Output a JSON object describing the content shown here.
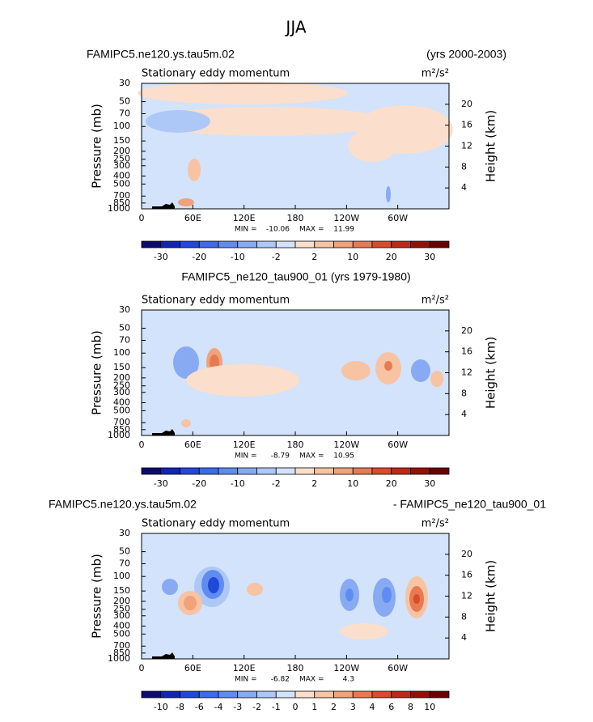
{
  "title": "JJA",
  "chart_data": [
    {
      "type": "contour",
      "title_left": "FAMIPC5.ne120.ys.tau5m.02",
      "title_right": "(yrs 2000-2003)",
      "subtitle": "Stationary eddy momentum",
      "units": "m²/s²",
      "ylabel": "Pressure (mb)",
      "y2label": "Height (km)",
      "log_y": true,
      "xlim": [
        0,
        360
      ],
      "xticks": [
        0,
        {
          "value": 60,
          "label": "60E"
        },
        {
          "value": 120,
          "label": "120E"
        },
        180,
        {
          "value": 240,
          "label": "120W"
        },
        {
          "value": 300,
          "label": "60W"
        }
      ],
      "ylim": [
        1000,
        30
      ],
      "yticks": [
        30,
        50,
        70,
        100,
        150,
        200,
        250,
        300,
        400,
        500,
        700,
        850,
        1000
      ],
      "y2lim": [
        0,
        24
      ],
      "y2ticks": [
        4,
        8,
        12,
        16,
        20
      ],
      "min_label": "MIN =",
      "min": -10.06,
      "max_label": "MAX =",
      "max": 11.99,
      "levels": [
        -30,
        null,
        -20,
        null,
        -10,
        null,
        -2,
        null,
        2,
        null,
        10,
        null,
        20,
        null,
        30
      ],
      "colors": [
        "#0b0b70",
        "#1025b0",
        "#2248d8",
        "#3d6ce8",
        "#5f8cf0",
        "#88aaf3",
        "#adc8f7",
        "#d2e3fb",
        "#fbdfcc",
        "#f7c3a3",
        "#f1a27a",
        "#e87a52",
        "#d84c2b",
        "#bb2a18",
        "#921208",
        "#6a0000"
      ]
    },
    {
      "type": "contour",
      "title": "FAMIPC5_ne120_tau900_01 (yrs 1979-1980)",
      "subtitle": "Stationary eddy momentum",
      "units": "m²/s²",
      "ylabel": "Pressure (mb)",
      "y2label": "Height (km)",
      "log_y": true,
      "xlim": [
        0,
        360
      ],
      "xticks": [
        0,
        {
          "value": 60,
          "label": "60E"
        },
        {
          "value": 120,
          "label": "120E"
        },
        180,
        {
          "value": 240,
          "label": "120W"
        },
        {
          "value": 300,
          "label": "60W"
        }
      ],
      "ylim": [
        1000,
        30
      ],
      "yticks": [
        30,
        50,
        70,
        100,
        150,
        200,
        250,
        300,
        400,
        500,
        700,
        850,
        1000
      ],
      "y2lim": [
        0,
        24
      ],
      "y2ticks": [
        4,
        8,
        12,
        16,
        20
      ],
      "min_label": "MIN =",
      "min": -8.79,
      "max_label": "MAX =",
      "max": 10.95,
      "levels": [
        -30,
        null,
        -20,
        null,
        -10,
        null,
        -2,
        null,
        2,
        null,
        10,
        null,
        20,
        null,
        30
      ],
      "colors": [
        "#0b0b70",
        "#1025b0",
        "#2248d8",
        "#3d6ce8",
        "#5f8cf0",
        "#88aaf3",
        "#adc8f7",
        "#d2e3fb",
        "#fbdfcc",
        "#f7c3a3",
        "#f1a27a",
        "#e87a52",
        "#d84c2b",
        "#bb2a18",
        "#921208",
        "#6a0000"
      ]
    },
    {
      "type": "contour",
      "title_left": "FAMIPC5.ne120.ys.tau5m.02",
      "title_right": "- FAMIPC5_ne120_tau900_01",
      "subtitle": "Stationary eddy momentum",
      "units": "m²/s²",
      "ylabel": "Pressure (mb)",
      "y2label": "Height (km)",
      "log_y": true,
      "xlim": [
        0,
        360
      ],
      "xticks": [
        0,
        {
          "value": 60,
          "label": "60E"
        },
        {
          "value": 120,
          "label": "120E"
        },
        180,
        {
          "value": 240,
          "label": "120W"
        },
        {
          "value": 300,
          "label": "60W"
        }
      ],
      "ylim": [
        1000,
        30
      ],
      "yticks": [
        30,
        50,
        70,
        100,
        150,
        200,
        250,
        300,
        400,
        500,
        700,
        850,
        1000
      ],
      "y2lim": [
        0,
        24
      ],
      "y2ticks": [
        4,
        8,
        12,
        16,
        20
      ],
      "min_label": "MIN =",
      "min": -6.82,
      "max_label": "MAX =",
      "max": 4.3,
      "levels": [
        -10,
        -8,
        -6,
        -4,
        -3,
        -2,
        -1,
        0,
        1,
        2,
        3,
        4,
        6,
        8,
        10
      ],
      "colors": [
        "#0b0b70",
        "#1025b0",
        "#2248d8",
        "#3d6ce8",
        "#5f8cf0",
        "#88aaf3",
        "#adc8f7",
        "#d2e3fb",
        "#fbdfcc",
        "#f7c3a3",
        "#f1a27a",
        "#e87a52",
        "#d84c2b",
        "#bb2a18",
        "#921208",
        "#6a0000"
      ]
    }
  ]
}
